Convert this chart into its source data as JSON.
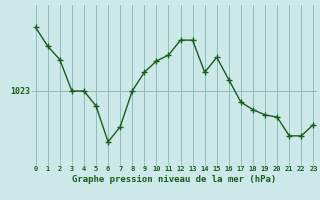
{
  "hours": [
    0,
    1,
    2,
    3,
    4,
    5,
    6,
    7,
    8,
    9,
    10,
    11,
    12,
    13,
    14,
    15,
    16,
    17,
    18,
    19,
    20,
    21,
    22,
    23
  ],
  "pressure": [
    1031.5,
    1029.0,
    1027.2,
    1023.0,
    1023.0,
    1021.0,
    1016.2,
    1018.2,
    1023.0,
    1025.5,
    1027.0,
    1027.8,
    1029.8,
    1029.8,
    1025.5,
    1027.5,
    1024.5,
    1021.5,
    1020.5,
    1019.8,
    1019.5,
    1017.0,
    1017.0,
    1018.5
  ],
  "ytick_value": 1023,
  "ytick_label": "1023",
  "bg_color": "#cce8e8",
  "line_color": "#1a5c1a",
  "grid_color": "#8bbcbc",
  "xlabel": "Graphe pression niveau de la mer (hPa)",
  "xlim": [
    0,
    23
  ],
  "ylim": [
    1013.5,
    1034.5
  ]
}
